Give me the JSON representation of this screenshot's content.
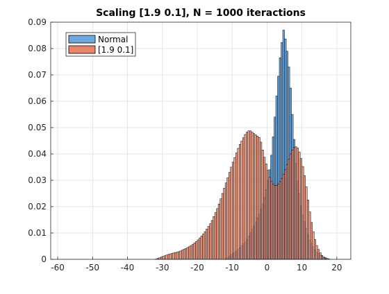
{
  "chart_data": {
    "type": "bar",
    "title": "Scaling [1.9 0.1], N = 1000 iteractions",
    "xlabel": "",
    "ylabel": "",
    "xlim": [
      -62,
      24
    ],
    "ylim": [
      0,
      0.09
    ],
    "xticks": [
      -60,
      -50,
      -40,
      -30,
      -20,
      -10,
      0,
      10,
      20
    ],
    "yticks": [
      0,
      0.01,
      0.02,
      0.03,
      0.04,
      0.05,
      0.06,
      0.07,
      0.08,
      0.09
    ],
    "xtick_labels": [
      "-60",
      "-50",
      "-40",
      "-30",
      "-20",
      "-10",
      "0",
      "10",
      "20"
    ],
    "ytick_labels": [
      "0",
      "0.01",
      "0.02",
      "0.03",
      "0.04",
      "0.05",
      "0.06",
      "0.07",
      "0.08",
      "0.09"
    ],
    "grid": true,
    "legend_position": "top-left",
    "bin_width": 0.5,
    "series": [
      {
        "name": "Normal",
        "color": "#6fa8dc",
        "points": [
          [
            -12,
            0.0
          ],
          [
            -10,
            0.002
          ],
          [
            -8,
            0.004
          ],
          [
            -6,
            0.007
          ],
          [
            -4,
            0.012
          ],
          [
            -2,
            0.018
          ],
          [
            -1,
            0.022
          ],
          [
            0,
            0.028
          ],
          [
            1,
            0.036
          ],
          [
            2,
            0.05
          ],
          [
            3,
            0.066
          ],
          [
            4,
            0.08
          ],
          [
            4.75,
            0.087
          ],
          [
            5.5,
            0.082
          ],
          [
            6.5,
            0.07
          ],
          [
            7.5,
            0.05
          ],
          [
            8.5,
            0.032
          ],
          [
            10,
            0.018
          ],
          [
            12,
            0.008
          ],
          [
            14,
            0.003
          ],
          [
            16,
            0.001
          ],
          [
            18,
            0.0
          ]
        ]
      },
      {
        "name": "[1.9 0.1]",
        "color": "#e8866a",
        "points": [
          [
            -32,
            0.0
          ],
          [
            -30,
            0.001
          ],
          [
            -28,
            0.002
          ],
          [
            -25,
            0.003
          ],
          [
            -22,
            0.005
          ],
          [
            -20,
            0.007
          ],
          [
            -18,
            0.01
          ],
          [
            -16,
            0.014
          ],
          [
            -14,
            0.02
          ],
          [
            -12,
            0.028
          ],
          [
            -10,
            0.036
          ],
          [
            -8,
            0.043
          ],
          [
            -6,
            0.048
          ],
          [
            -5,
            0.049
          ],
          [
            -4,
            0.048
          ],
          [
            -3,
            0.047
          ],
          [
            -2,
            0.046
          ],
          [
            -1,
            0.04
          ],
          [
            0,
            0.035
          ],
          [
            1,
            0.03
          ],
          [
            2,
            0.028
          ],
          [
            3,
            0.028
          ],
          [
            4,
            0.03
          ],
          [
            5,
            0.033
          ],
          [
            6,
            0.037
          ],
          [
            7,
            0.041
          ],
          [
            8,
            0.043
          ],
          [
            9,
            0.042
          ],
          [
            10,
            0.037
          ],
          [
            11,
            0.03
          ],
          [
            12,
            0.02
          ],
          [
            13,
            0.012
          ],
          [
            14,
            0.006
          ],
          [
            15,
            0.003
          ],
          [
            16,
            0.001
          ],
          [
            17,
            0.0
          ]
        ]
      }
    ]
  }
}
